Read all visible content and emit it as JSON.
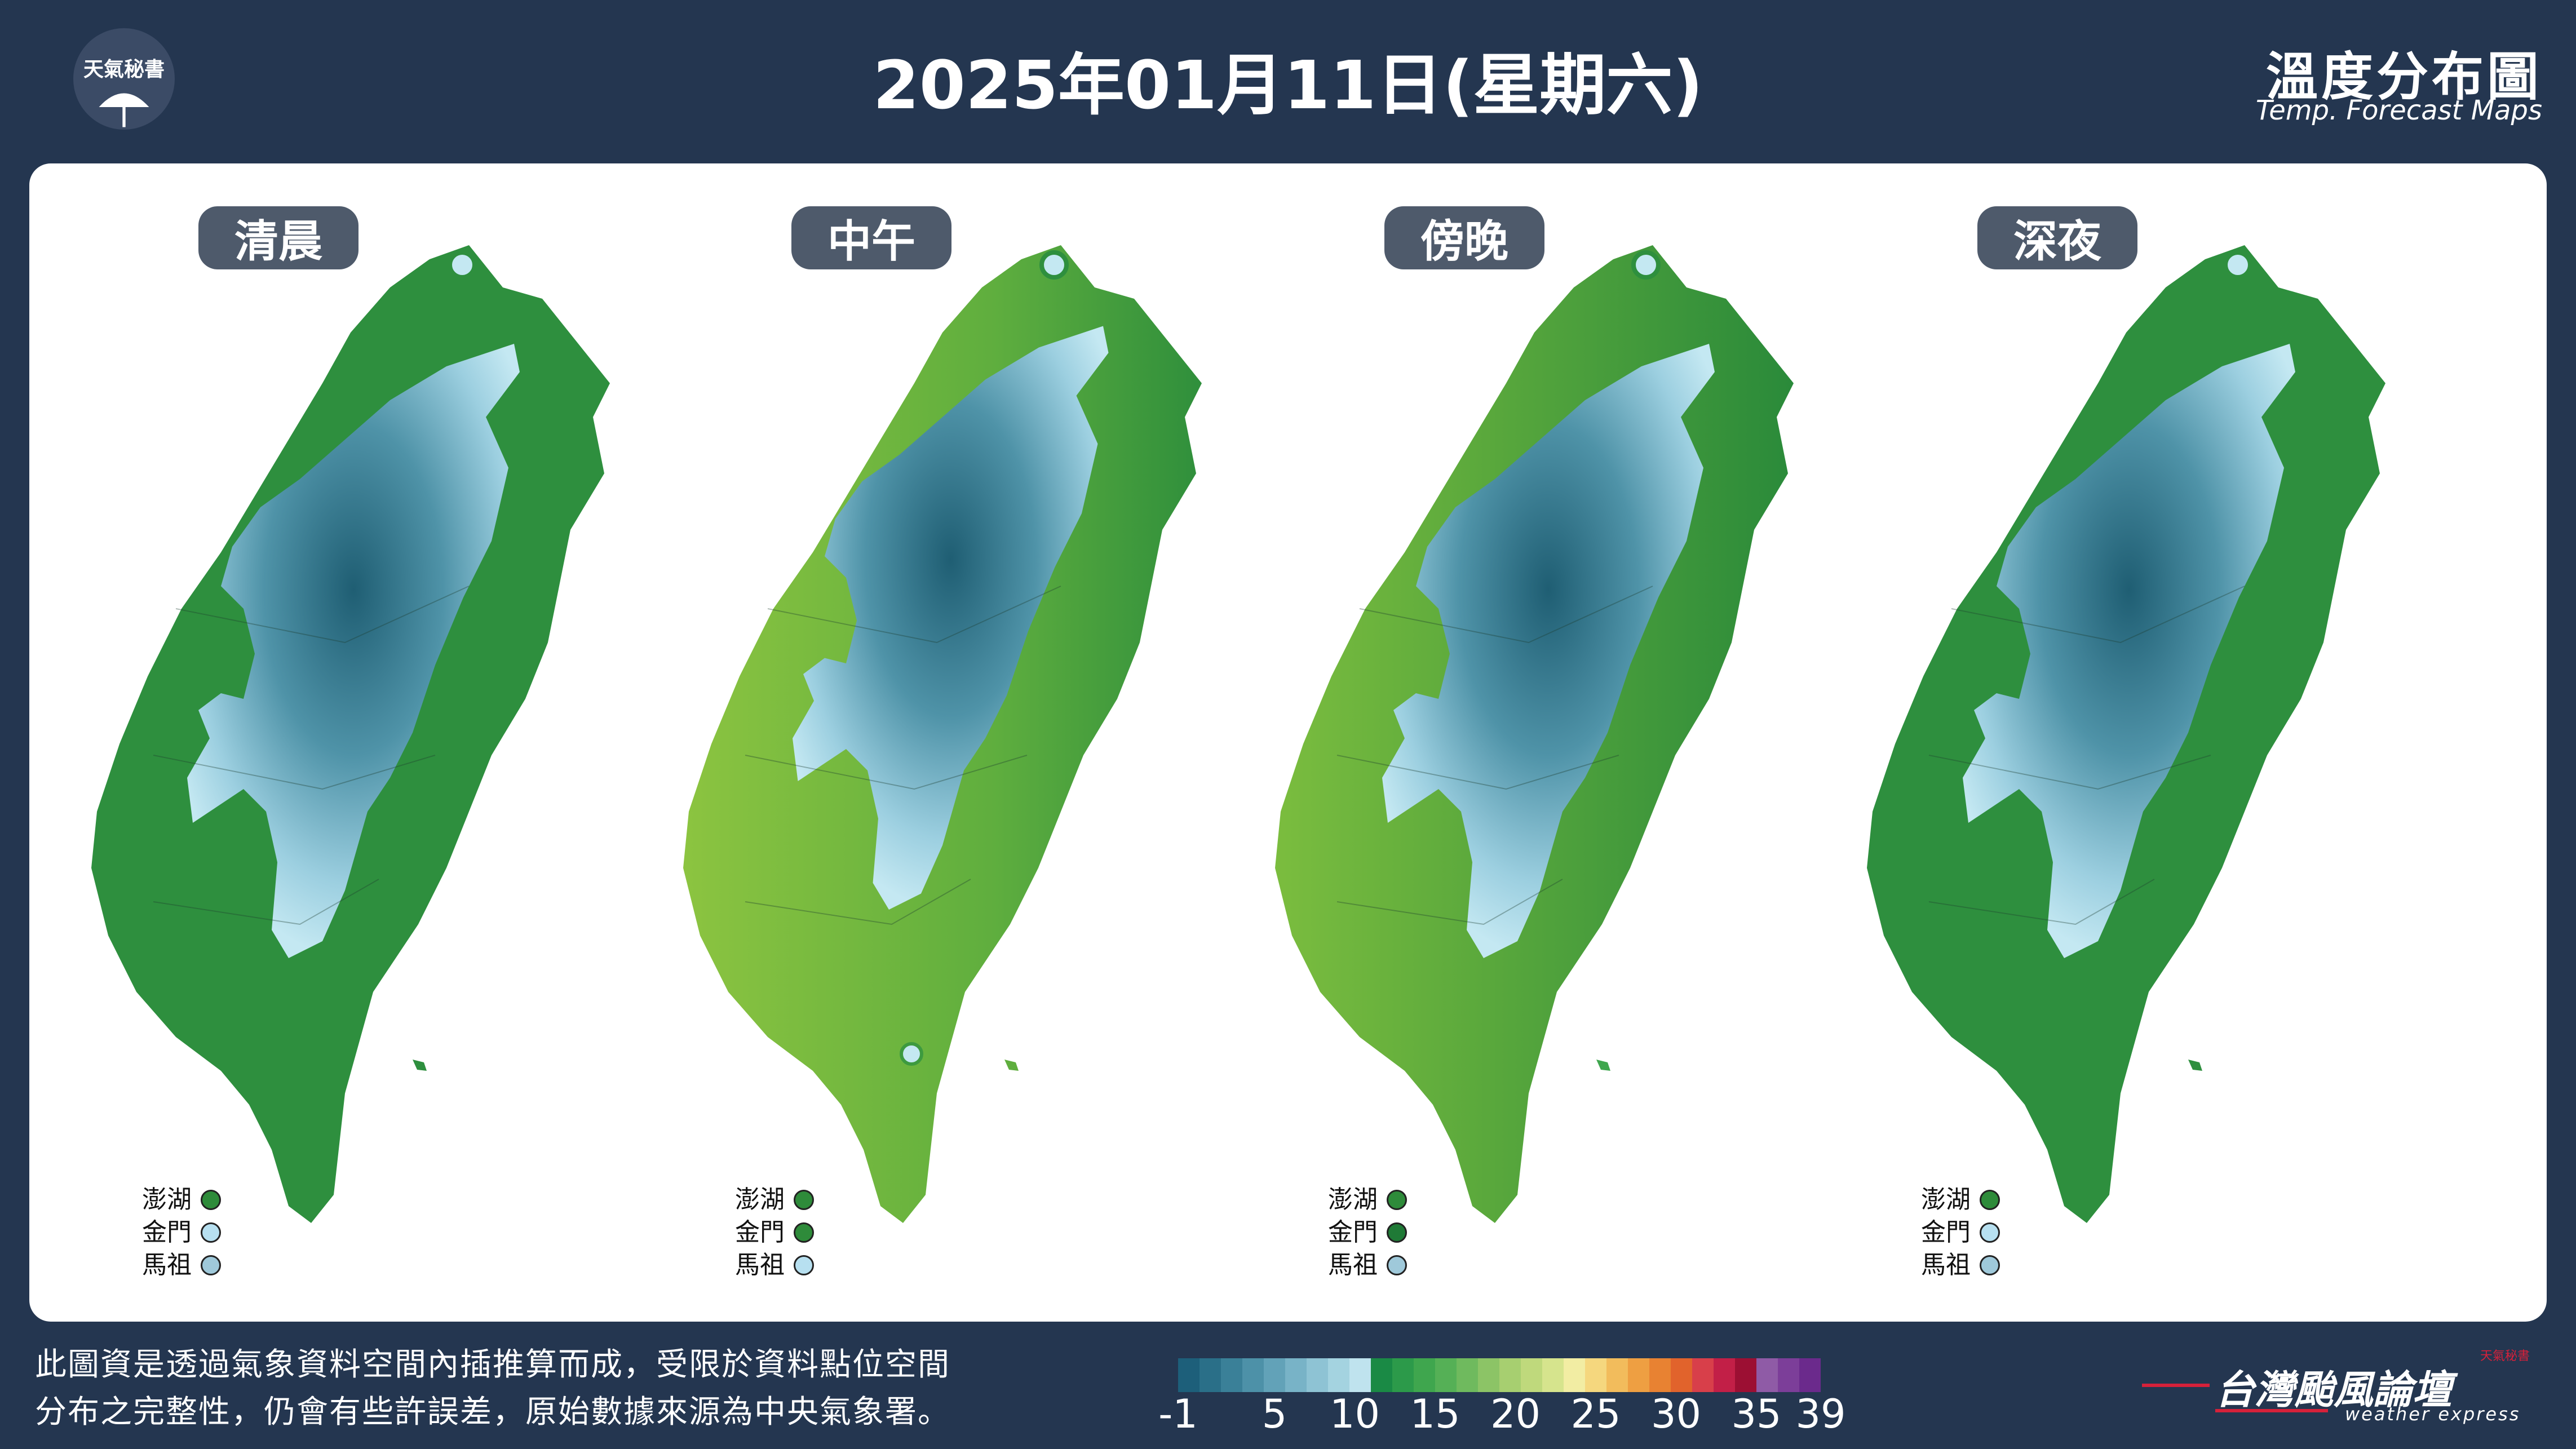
{
  "header": {
    "logo_text": "天氣秘書",
    "date_title": "2025年01月11日(星期六)",
    "map_title_zh": "溫度分布圖",
    "map_title_en": "Temp. Forecast Maps"
  },
  "panels": [
    {
      "label": "清晨",
      "islands": [
        {
          "name": "澎湖",
          "color": "#2e8b3a"
        },
        {
          "name": "金門",
          "color": "#b7e0f0"
        },
        {
          "name": "馬祖",
          "color": "#9fc9da"
        }
      ]
    },
    {
      "label": "中午",
      "islands": [
        {
          "name": "澎湖",
          "color": "#2e8b3a"
        },
        {
          "name": "金門",
          "color": "#2e8b3a"
        },
        {
          "name": "馬祖",
          "color": "#b7e0f0"
        }
      ]
    },
    {
      "label": "傍晚",
      "islands": [
        {
          "name": "澎湖",
          "color": "#2e8b3a"
        },
        {
          "name": "金門",
          "color": "#1f7a36"
        },
        {
          "name": "馬祖",
          "color": "#9fc9da"
        }
      ]
    },
    {
      "label": "深夜",
      "islands": [
        {
          "name": "澎湖",
          "color": "#2e8b3a"
        },
        {
          "name": "金門",
          "color": "#b7e0f0"
        },
        {
          "name": "馬祖",
          "color": "#9fc9da"
        }
      ]
    }
  ],
  "footer": {
    "disclaimer_line1": "此圖資是透過氣象資料空間內插推算而成，受限於資料點位空間",
    "disclaimer_line2": "分布之完整性，仍會有些許誤差，原始數據來源為中央氣象署。",
    "colorbar_ticks": [
      "-1",
      "5",
      "10",
      "15",
      "20",
      "25",
      "30",
      "35",
      "39"
    ],
    "colorbar_colors": [
      "#1d5f7a",
      "#2a6f88",
      "#3a8098",
      "#4d91a8",
      "#62a2b8",
      "#78b3c7",
      "#8ec3d4",
      "#a4d3e0",
      "#bfe3ee",
      "#1a8a45",
      "#2c9a4a",
      "#3fa64e",
      "#55b056",
      "#6fba5e",
      "#8cc466",
      "#a7cf70",
      "#bfd97c",
      "#d6e48d",
      "#f2eda3",
      "#f5d77e",
      "#f2bc5c",
      "#ee9f42",
      "#e88232",
      "#e1632c",
      "#d83f4a",
      "#c21f47",
      "#9c0f33",
      "#8f5ba6",
      "#7c3e99",
      "#6b2a8c"
    ],
    "brand_zh": "台灣颱風論壇",
    "brand_en": "weather express",
    "brand_tag": "天氣秘書"
  }
}
